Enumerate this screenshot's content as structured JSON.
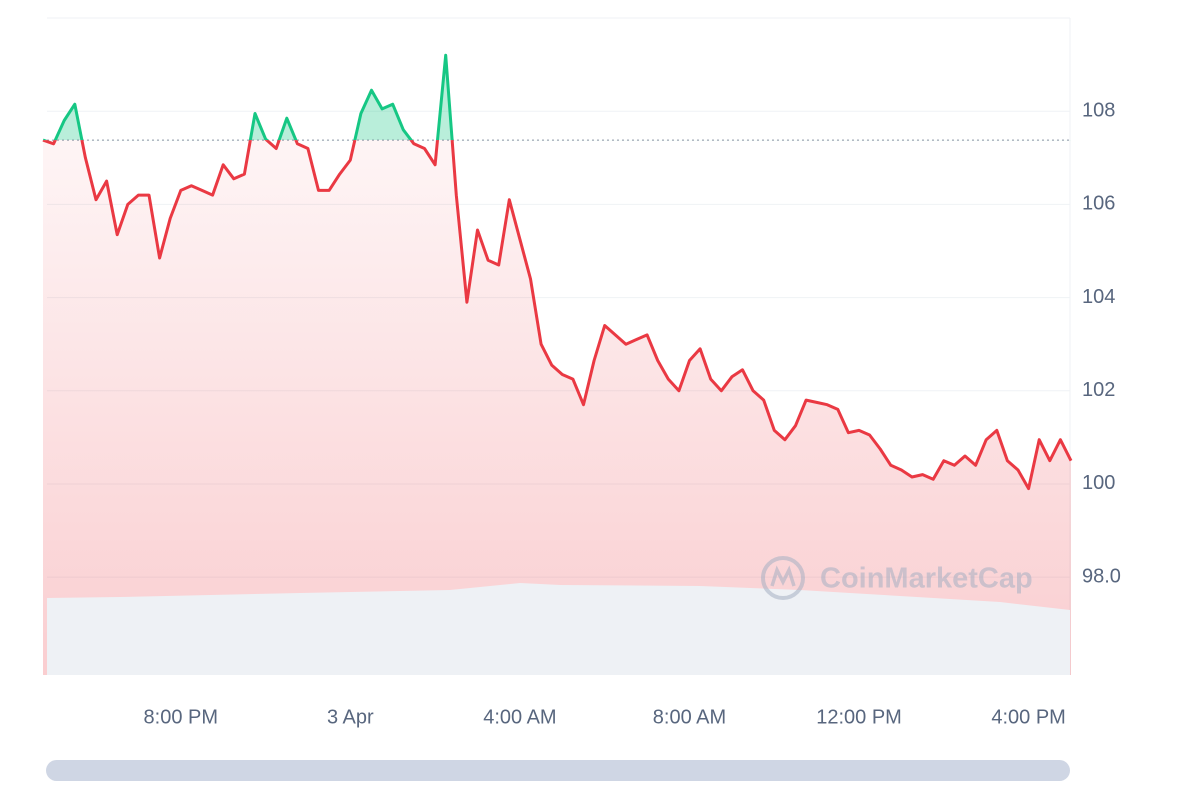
{
  "chart_data": {
    "type": "line",
    "watermark": "CoinMarketCap",
    "categories": [
      null,
      null,
      null,
      null,
      null,
      null,
      null,
      null,
      null,
      null,
      null,
      null,
      null,
      "8:00 PM",
      null,
      null,
      null,
      null,
      null,
      null,
      null,
      null,
      null,
      null,
      null,
      null,
      null,
      null,
      null,
      "3 Apr",
      null,
      null,
      null,
      null,
      null,
      null,
      null,
      null,
      null,
      null,
      null,
      null,
      null,
      null,
      null,
      "4:00 AM",
      null,
      null,
      null,
      null,
      null,
      null,
      null,
      null,
      null,
      null,
      null,
      null,
      null,
      null,
      null,
      "8:00 AM",
      null,
      null,
      null,
      null,
      null,
      null,
      null,
      null,
      null,
      null,
      null,
      null,
      null,
      null,
      null,
      "12:00 PM",
      null,
      null,
      null,
      null,
      null,
      null,
      null,
      null,
      null,
      null,
      null,
      null,
      null,
      null,
      null,
      "4:00 PM",
      null,
      null,
      null,
      null
    ],
    "series": [
      {
        "up_color": "#16c784",
        "down_color": "#ea3943",
        "values": [
          107.38,
          107.3,
          107.8,
          108.15,
          107.0,
          106.1,
          106.5,
          105.35,
          106.0,
          106.2,
          106.2,
          104.85,
          105.7,
          106.3,
          106.4,
          106.3,
          106.2,
          106.85,
          106.55,
          106.65,
          107.95,
          107.4,
          107.2,
          107.85,
          107.3,
          107.2,
          106.3,
          106.3,
          106.65,
          106.95,
          107.95,
          108.45,
          108.05,
          108.15,
          107.6,
          107.3,
          107.2,
          106.85,
          109.2,
          106.2,
          103.9,
          105.45,
          104.8,
          104.7,
          106.1,
          105.25,
          104.4,
          103.0,
          102.55,
          102.35,
          102.25,
          101.7,
          102.65,
          103.4,
          103.2,
          103.0,
          103.1,
          103.2,
          102.65,
          102.25,
          102.0,
          102.65,
          102.9,
          102.25,
          102.0,
          102.3,
          102.45,
          102.0,
          101.8,
          101.15,
          100.95,
          101.25,
          101.8,
          101.75,
          101.7,
          101.6,
          101.1,
          101.15,
          101.05,
          100.75,
          100.4,
          100.3,
          100.15,
          100.2,
          100.1,
          100.5,
          100.4,
          100.6,
          100.4,
          100.95,
          101.15,
          100.5,
          100.3,
          99.9,
          100.95,
          100.5,
          100.95,
          100.5
        ]
      }
    ],
    "baseline": 107.38,
    "ylim": [
      95.9,
      110.0
    ],
    "yticks": [
      {
        "value": 98,
        "label": "98.0"
      },
      100,
      102,
      104,
      106,
      108
    ],
    "grid": true
  }
}
